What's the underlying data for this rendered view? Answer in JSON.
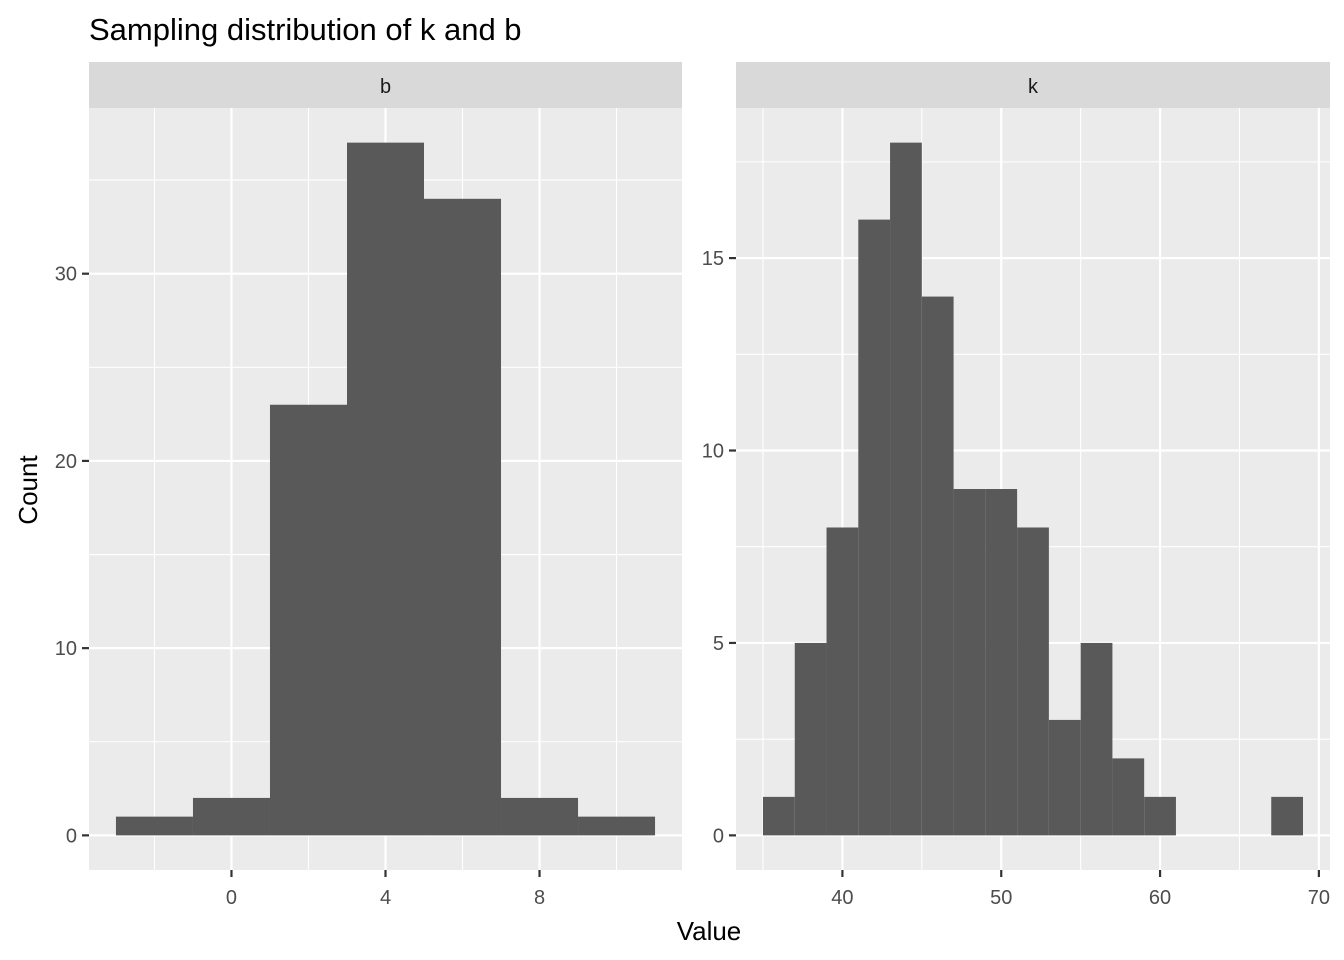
{
  "chart_data": {
    "type": "bar",
    "title": "Sampling distribution of k and b",
    "xlabel": "Value",
    "ylabel": "Count",
    "grid": true,
    "facets": [
      {
        "name": "b",
        "bin_width": 2,
        "bins": [
          {
            "x0": -3,
            "x1": -1,
            "count": 1
          },
          {
            "x0": -1,
            "x1": 1,
            "count": 2
          },
          {
            "x0": 1,
            "x1": 3,
            "count": 23
          },
          {
            "x0": 3,
            "x1": 5,
            "count": 37
          },
          {
            "x0": 5,
            "x1": 7,
            "count": 34
          },
          {
            "x0": 7,
            "x1": 9,
            "count": 2
          },
          {
            "x0": 9,
            "x1": 11,
            "count": 1
          }
        ],
        "xlim": [
          -3.7,
          11.7
        ],
        "ylim": [
          -1.85,
          38.85
        ],
        "x_ticks": [
          0,
          4,
          8
        ],
        "y_ticks": [
          0,
          10,
          20,
          30
        ]
      },
      {
        "name": "k",
        "bin_width": 2,
        "bins": [
          {
            "x0": 35,
            "x1": 37,
            "count": 1
          },
          {
            "x0": 37,
            "x1": 39,
            "count": 5
          },
          {
            "x0": 39,
            "x1": 41,
            "count": 8
          },
          {
            "x0": 41,
            "x1": 43,
            "count": 16
          },
          {
            "x0": 43,
            "x1": 45,
            "count": 18
          },
          {
            "x0": 45,
            "x1": 47,
            "count": 14
          },
          {
            "x0": 47,
            "x1": 49,
            "count": 9
          },
          {
            "x0": 49,
            "x1": 51,
            "count": 9
          },
          {
            "x0": 51,
            "x1": 53,
            "count": 8
          },
          {
            "x0": 53,
            "x1": 55,
            "count": 3
          },
          {
            "x0": 55,
            "x1": 57,
            "count": 5
          },
          {
            "x0": 57,
            "x1": 59,
            "count": 2
          },
          {
            "x0": 59,
            "x1": 61,
            "count": 1
          },
          {
            "x0": 61,
            "x1": 63,
            "count": 0
          },
          {
            "x0": 63,
            "x1": 65,
            "count": 0
          },
          {
            "x0": 65,
            "x1": 67,
            "count": 0
          },
          {
            "x0": 67,
            "x1": 69,
            "count": 1
          }
        ],
        "xlim": [
          33.3,
          70.7
        ],
        "ylim": [
          -0.9,
          18.9
        ],
        "x_ticks": [
          40,
          50,
          60,
          70
        ],
        "y_ticks": [
          0,
          5,
          10,
          15
        ]
      }
    ]
  }
}
